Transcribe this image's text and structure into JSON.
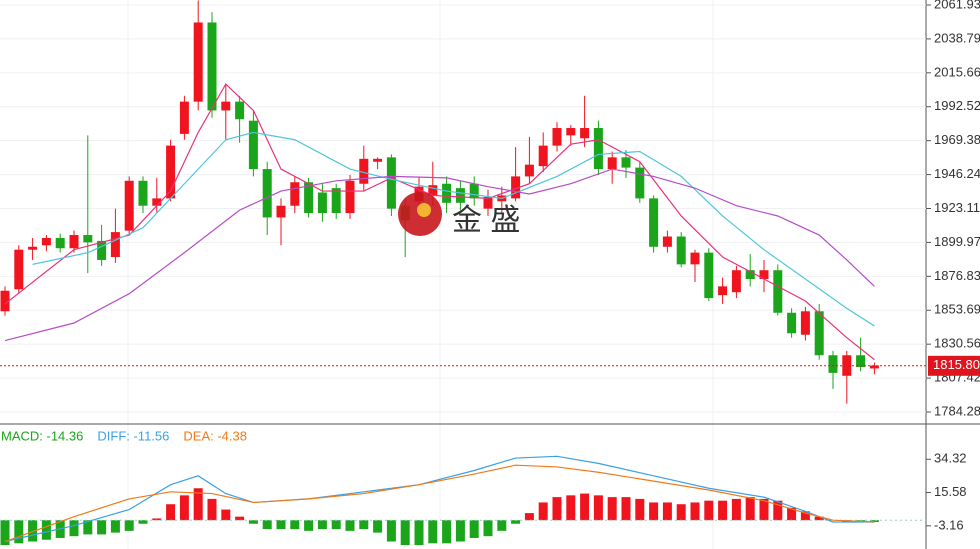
{
  "chart_data": [
    {
      "type": "candlestick",
      "watermark": "金 盛",
      "open": [
        1853,
        1868,
        1895,
        1898,
        1903,
        1896,
        1905,
        1901,
        1890,
        1908,
        1942,
        1925,
        1930,
        1974,
        1996,
        2050,
        1990,
        1996,
        1983,
        1950,
        1917,
        1925,
        1941,
        1934,
        1937,
        1920,
        1940,
        1955,
        1958,
        1925,
        1928,
        1932,
        1940,
        1937,
        1940,
        1923,
        1928,
        1930,
        1945,
        1952,
        1966,
        1973,
        1971,
        1978,
        1950,
        1958,
        1951,
        1930,
        1897,
        1904,
        1885,
        1893,
        1864,
        1866,
        1881,
        1875,
        1881,
        1852,
        1837,
        1853,
        1823,
        1809,
        1823,
        1814
      ],
      "high": [
        1870,
        1898,
        1903,
        1905,
        1906,
        1908,
        1973,
        1912,
        1923,
        1945,
        1945,
        1944,
        1970,
        2000,
        2065,
        2057,
        2008,
        2000,
        1990,
        1955,
        1930,
        1945,
        1944,
        1940,
        1940,
        1946,
        1966,
        1958,
        1960,
        1930,
        1945,
        1955,
        1945,
        1942,
        1945,
        1936,
        1938,
        1965,
        1972,
        1975,
        1982,
        1980,
        2000,
        1983,
        1962,
        1963,
        1955,
        1932,
        1908,
        1907,
        1895,
        1896,
        1876,
        1884,
        1892,
        1888,
        1885,
        1855,
        1856,
        1858,
        1826,
        1826,
        1835,
        1818
      ],
      "low": [
        1850,
        1865,
        1888,
        1894,
        1893,
        1893,
        1879,
        1884,
        1886,
        1905,
        1920,
        1920,
        1928,
        1970,
        1990,
        1985,
        1970,
        1968,
        1945,
        1905,
        1898,
        1920,
        1917,
        1914,
        1916,
        1916,
        1935,
        1950,
        1918,
        1890,
        1920,
        1925,
        1920,
        1922,
        1925,
        1918,
        1920,
        1928,
        1940,
        1948,
        1962,
        1966,
        1965,
        1946,
        1940,
        1944,
        1927,
        1893,
        1893,
        1883,
        1873,
        1860,
        1858,
        1862,
        1870,
        1866,
        1850,
        1835,
        1833,
        1820,
        1800,
        1790,
        1812,
        1810
      ],
      "close": [
        1867,
        1895,
        1897,
        1903,
        1896,
        1905,
        1900,
        1888,
        1907,
        1942,
        1925,
        1930,
        1966,
        1996,
        2050,
        1990,
        1996,
        1984,
        1950,
        1917,
        1925,
        1941,
        1920,
        1920,
        1920,
        1942,
        1957,
        1957,
        1923,
        1915,
        1938,
        1939,
        1927,
        1927,
        1930,
        1931,
        1932,
        1945,
        1953,
        1966,
        1978,
        1978,
        1978,
        1950,
        1958,
        1951,
        1930,
        1897,
        1904,
        1885,
        1893,
        1862,
        1870,
        1881,
        1875,
        1881,
        1852,
        1838,
        1853,
        1823,
        1811,
        1823,
        1815,
        1816
      ],
      "up_color": "#f0141e",
      "down_color": "#1aa51a",
      "lines": [
        {
          "color": "#e8327a",
          "x": [
            0,
            5,
            9,
            12,
            14,
            16,
            18,
            20,
            23,
            26,
            28,
            31,
            35,
            38,
            41,
            43,
            46,
            49,
            52,
            55,
            58,
            61,
            63
          ],
          "values": [
            1858,
            1895,
            1905,
            1935,
            1975,
            2008,
            1990,
            1950,
            1935,
            1935,
            1944,
            1932,
            1930,
            1940,
            1967,
            1970,
            1955,
            1918,
            1890,
            1875,
            1860,
            1835,
            1820
          ]
        },
        {
          "color": "#4fc6dc",
          "x": [
            2,
            6,
            10,
            13,
            16,
            18,
            21,
            25,
            28,
            32,
            36,
            40,
            43,
            46,
            49,
            52,
            55,
            58,
            61,
            63
          ],
          "values": [
            1885,
            1893,
            1910,
            1940,
            1970,
            1975,
            1970,
            1950,
            1943,
            1935,
            1930,
            1945,
            1960,
            1962,
            1945,
            1918,
            1895,
            1875,
            1855,
            1843
          ]
        },
        {
          "color": "#b54cc8",
          "x": [
            0,
            5,
            9,
            13,
            17,
            20,
            24,
            28,
            32,
            35,
            38,
            41,
            44,
            47,
            50,
            53,
            56,
            59,
            61,
            63
          ],
          "values": [
            1833,
            1845,
            1865,
            1893,
            1922,
            1935,
            1942,
            1945,
            1944,
            1938,
            1933,
            1940,
            1950,
            1945,
            1937,
            1925,
            1918,
            1905,
            1888,
            1870
          ]
        }
      ],
      "current_price": {
        "value": 1815.8,
        "label": "1815.80"
      },
      "ylim": [
        1777.47,
        2065.33
      ],
      "yticks": [
        2061.93,
        2038.79,
        2015.66,
        1992.52,
        1969.38,
        1946.24,
        1923.11,
        1899.97,
        1876.83,
        1853.69,
        1830.56,
        1807.42,
        1784.28
      ],
      "grid": true
    },
    {
      "type": "macd",
      "legend": [
        {
          "name": "MACD: -14.36",
          "color": "#1aa51a"
        },
        {
          "name": "DIFF: -11.56",
          "color": "#3ba0e6"
        },
        {
          "name": "DEA: -4.38",
          "color": "#f07a1a"
        }
      ],
      "values": [
        -14,
        -13,
        -12,
        -11,
        -10,
        -9,
        -8,
        -8,
        -7,
        -6,
        -2,
        1,
        9,
        14,
        18,
        12,
        6,
        2,
        -2,
        -5,
        -5,
        -5,
        -6,
        -5,
        -5,
        -6,
        -5,
        -7,
        -12,
        -14,
        -14,
        -13,
        -13,
        -12,
        -10,
        -9,
        -6,
        -2,
        4,
        10,
        13,
        14,
        15,
        14,
        13,
        13,
        12,
        10,
        10,
        9,
        10,
        11,
        11,
        12,
        13,
        12,
        11,
        7,
        5,
        2,
        0,
        -1,
        -1,
        -1
      ],
      "lines": [
        {
          "color": "#3ba0e6",
          "x": [
            0,
            5,
            9,
            12,
            14,
            16,
            18,
            22,
            26,
            30,
            34,
            37,
            40,
            43,
            47,
            51,
            55,
            58,
            60,
            63
          ],
          "values": [
            -12,
            -3,
            6,
            20,
            25,
            15,
            10,
            12,
            16,
            20,
            28,
            35,
            36,
            32,
            25,
            18,
            13,
            5,
            -1,
            -1
          ]
        },
        {
          "color": "#f07a1a",
          "x": [
            0,
            5,
            9,
            12,
            15,
            18,
            22,
            26,
            30,
            34,
            37,
            40,
            43,
            47,
            51,
            55,
            58,
            60,
            63
          ],
          "values": [
            -12,
            2,
            12,
            16,
            15,
            10,
            12,
            15,
            20,
            26,
            31,
            30,
            27,
            22,
            17,
            11,
            4,
            0,
            -1
          ]
        }
      ],
      "ylim": [
        -16.22,
        53.63
      ],
      "yticks": [
        34.32,
        15.58,
        -3.16
      ]
    }
  ]
}
